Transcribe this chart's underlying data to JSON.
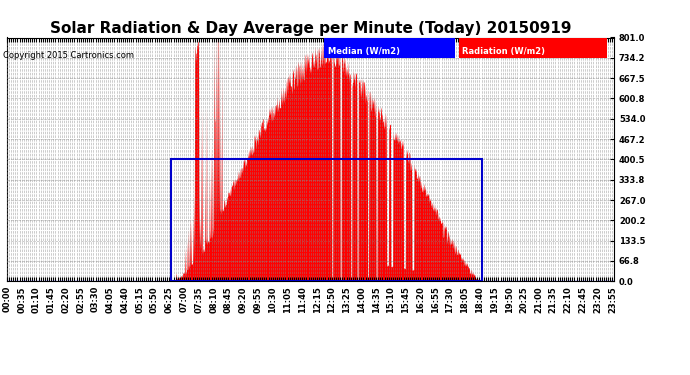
{
  "title": "Solar Radiation & Day Average per Minute (Today) 20150919",
  "copyright": "Copyright 2015 Cartronics.com",
  "legend_median": "Median (W/m2)",
  "legend_radiation": "Radiation (W/m2)",
  "ymax": 801.0,
  "yticks": [
    0.0,
    66.8,
    133.5,
    200.2,
    267.0,
    333.8,
    400.5,
    467.2,
    534.0,
    600.8,
    667.5,
    734.2,
    801.0
  ],
  "bg_color": "#ffffff",
  "plot_bg": "#ffffff",
  "grid_color": "#888888",
  "radiation_color": "#ff0000",
  "median_color": "#0000cc",
  "title_fontsize": 11,
  "tick_fontsize": 6,
  "total_minutes": 1440,
  "sunrise_minute": 390,
  "sunset_minute": 1125,
  "median_value": 400.5,
  "peak_value": 801.0,
  "label_interval_minutes": 35
}
